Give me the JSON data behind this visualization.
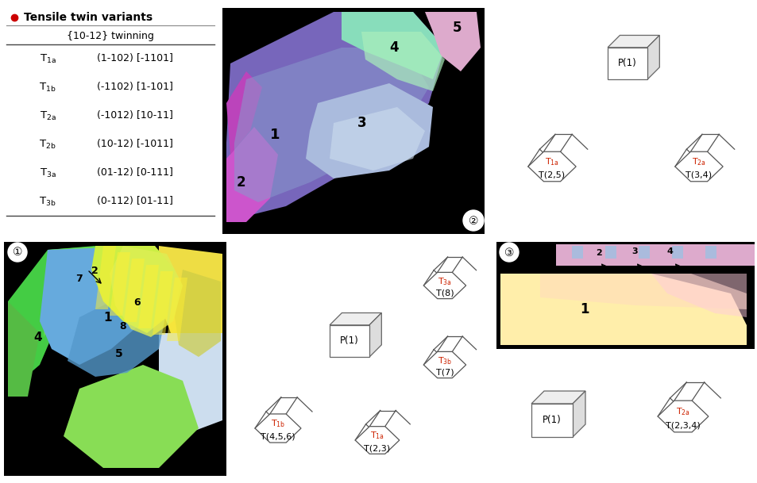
{
  "background": "#ffffff",
  "legend_dot_color": "#cc0000",
  "legend_title": "Tensile twin variants",
  "legend_subtitle": "{10-12} twinning",
  "row_labels": [
    "T_{1a}",
    "T_{1b}",
    "T_{2a}",
    "T_{2b}",
    "T_{3a}",
    "T_{3b}"
  ],
  "row_texts": [
    "(1-102) [-1101]",
    "(-1102) [1-101]",
    "(-1012) [10-11]",
    "(10-12) [-1011]",
    "(01-12) [0-111]",
    "(0-112) [01-11]"
  ],
  "hex_edge_color": "#555555",
  "cube_edge_color": "#666666",
  "red_label_color": "#cc2200"
}
